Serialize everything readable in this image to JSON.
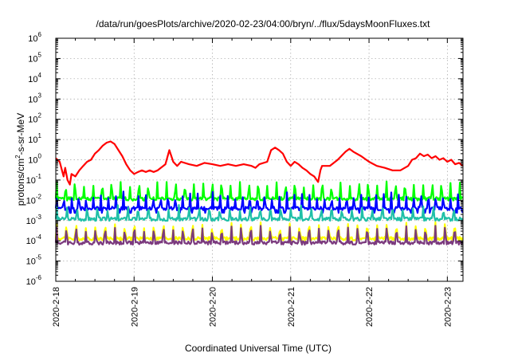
{
  "chart_data": {
    "type": "line",
    "title": "/data/run/goesPlots/archive/2020-02-23/04:00/bryn/../flux/5daysMoonFluxes.txt",
    "xlabel": "Coordinated Universal Time (UTC)",
    "ylabel_parts": [
      "protons/cm",
      "2",
      "-s-sr-MeV"
    ],
    "yscale": "log",
    "ylim_exp": [
      -6,
      6
    ],
    "y_tick_labels": [
      {
        "base": "10",
        "exp": "-6"
      },
      {
        "base": "10",
        "exp": "-5"
      },
      {
        "base": "10",
        "exp": "-4"
      },
      {
        "base": "10",
        "exp": "-3"
      },
      {
        "base": "10",
        "exp": "-2"
      },
      {
        "base": "10",
        "exp": "-1"
      },
      {
        "base": "10",
        "exp": "0"
      },
      {
        "base": "10",
        "exp": "1"
      },
      {
        "base": "10",
        "exp": "2"
      },
      {
        "base": "10",
        "exp": "3"
      },
      {
        "base": "10",
        "exp": "4"
      },
      {
        "base": "10",
        "exp": "5"
      },
      {
        "base": "10",
        "exp": "6"
      }
    ],
    "x_tick_labels": [
      "2020-2-18",
      "2020-2-19",
      "2020-2-20",
      "2020-2-21",
      "2020-2-22",
      "2020-2-23"
    ],
    "xlim_days": [
      0,
      5.2
    ],
    "grid": true,
    "series": [
      {
        "color": "#ff0000",
        "points": [
          [
            0.0,
            1.2
          ],
          [
            0.05,
            0.8
          ],
          [
            0.1,
            0.15
          ],
          [
            0.12,
            0.4
          ],
          [
            0.15,
            0.1
          ],
          [
            0.18,
            0.06
          ],
          [
            0.2,
            0.2
          ],
          [
            0.25,
            0.15
          ],
          [
            0.3,
            0.3
          ],
          [
            0.35,
            0.5
          ],
          [
            0.4,
            0.8
          ],
          [
            0.45,
            1.0
          ],
          [
            0.5,
            2.0
          ],
          [
            0.55,
            3.0
          ],
          [
            0.6,
            5.0
          ],
          [
            0.65,
            7.0
          ],
          [
            0.7,
            8.0
          ],
          [
            0.75,
            6.0
          ],
          [
            0.8,
            3.0
          ],
          [
            0.85,
            1.5
          ],
          [
            0.9,
            0.6
          ],
          [
            0.95,
            0.3
          ],
          [
            1.0,
            0.2
          ],
          [
            1.05,
            0.25
          ],
          [
            1.1,
            0.3
          ],
          [
            1.15,
            0.25
          ],
          [
            1.2,
            0.3
          ],
          [
            1.25,
            0.25
          ],
          [
            1.3,
            0.3
          ],
          [
            1.4,
            0.6
          ],
          [
            1.45,
            3.0
          ],
          [
            1.5,
            0.8
          ],
          [
            1.55,
            0.5
          ],
          [
            1.6,
            0.8
          ],
          [
            1.7,
            0.6
          ],
          [
            1.8,
            0.5
          ],
          [
            1.9,
            0.7
          ],
          [
            2.0,
            0.6
          ],
          [
            2.1,
            0.5
          ],
          [
            2.2,
            0.6
          ],
          [
            2.3,
            0.5
          ],
          [
            2.4,
            0.6
          ],
          [
            2.5,
            0.5
          ],
          [
            2.55,
            0.4
          ],
          [
            2.6,
            0.6
          ],
          [
            2.7,
            0.8
          ],
          [
            2.75,
            3.0
          ],
          [
            2.8,
            4.0
          ],
          [
            2.85,
            3.0
          ],
          [
            2.9,
            2.0
          ],
          [
            2.95,
            0.8
          ],
          [
            3.0,
            0.5
          ],
          [
            3.05,
            0.8
          ],
          [
            3.1,
            0.6
          ],
          [
            3.15,
            0.4
          ],
          [
            3.2,
            0.3
          ],
          [
            3.25,
            0.2
          ],
          [
            3.3,
            0.15
          ],
          [
            3.35,
            0.08
          ],
          [
            3.38,
            0.3
          ],
          [
            3.4,
            0.5
          ],
          [
            3.5,
            0.5
          ],
          [
            3.6,
            1.0
          ],
          [
            3.7,
            2.5
          ],
          [
            3.75,
            3.5
          ],
          [
            3.8,
            2.5
          ],
          [
            3.9,
            1.5
          ],
          [
            4.0,
            0.8
          ],
          [
            4.1,
            0.5
          ],
          [
            4.2,
            0.4
          ],
          [
            4.3,
            0.3
          ],
          [
            4.4,
            0.3
          ],
          [
            4.5,
            0.5
          ],
          [
            4.55,
            1.0
          ],
          [
            4.6,
            1.2
          ],
          [
            4.65,
            2.0
          ],
          [
            4.7,
            1.5
          ],
          [
            4.75,
            1.8
          ],
          [
            4.8,
            1.2
          ],
          [
            4.85,
            1.5
          ],
          [
            4.9,
            1.0
          ],
          [
            4.95,
            1.2
          ],
          [
            5.0,
            0.8
          ],
          [
            5.05,
            1.0
          ],
          [
            5.1,
            0.6
          ],
          [
            5.15,
            0.7
          ],
          [
            5.2,
            0.5
          ]
        ]
      },
      {
        "color": "#00ff00",
        "base": 0.012,
        "spike": 0.1,
        "period": 0.117,
        "seed": 1
      },
      {
        "color": "#0000ff",
        "base": 0.004,
        "spike": 0.03,
        "dip": 0.001,
        "period": 0.095,
        "seed": 2
      },
      {
        "color": "#20c0a8",
        "base": 0.0012,
        "spike": 0.006,
        "period": 0.13,
        "seed": 3
      },
      {
        "color": "#ffff00",
        "base": 0.00013,
        "spike": 0.0009,
        "period": 0.124,
        "seed": 4
      },
      {
        "color": "#7b3a7e",
        "base": 8e-05,
        "spike": 0.0006,
        "period": 0.124,
        "seed": 4
      }
    ]
  }
}
